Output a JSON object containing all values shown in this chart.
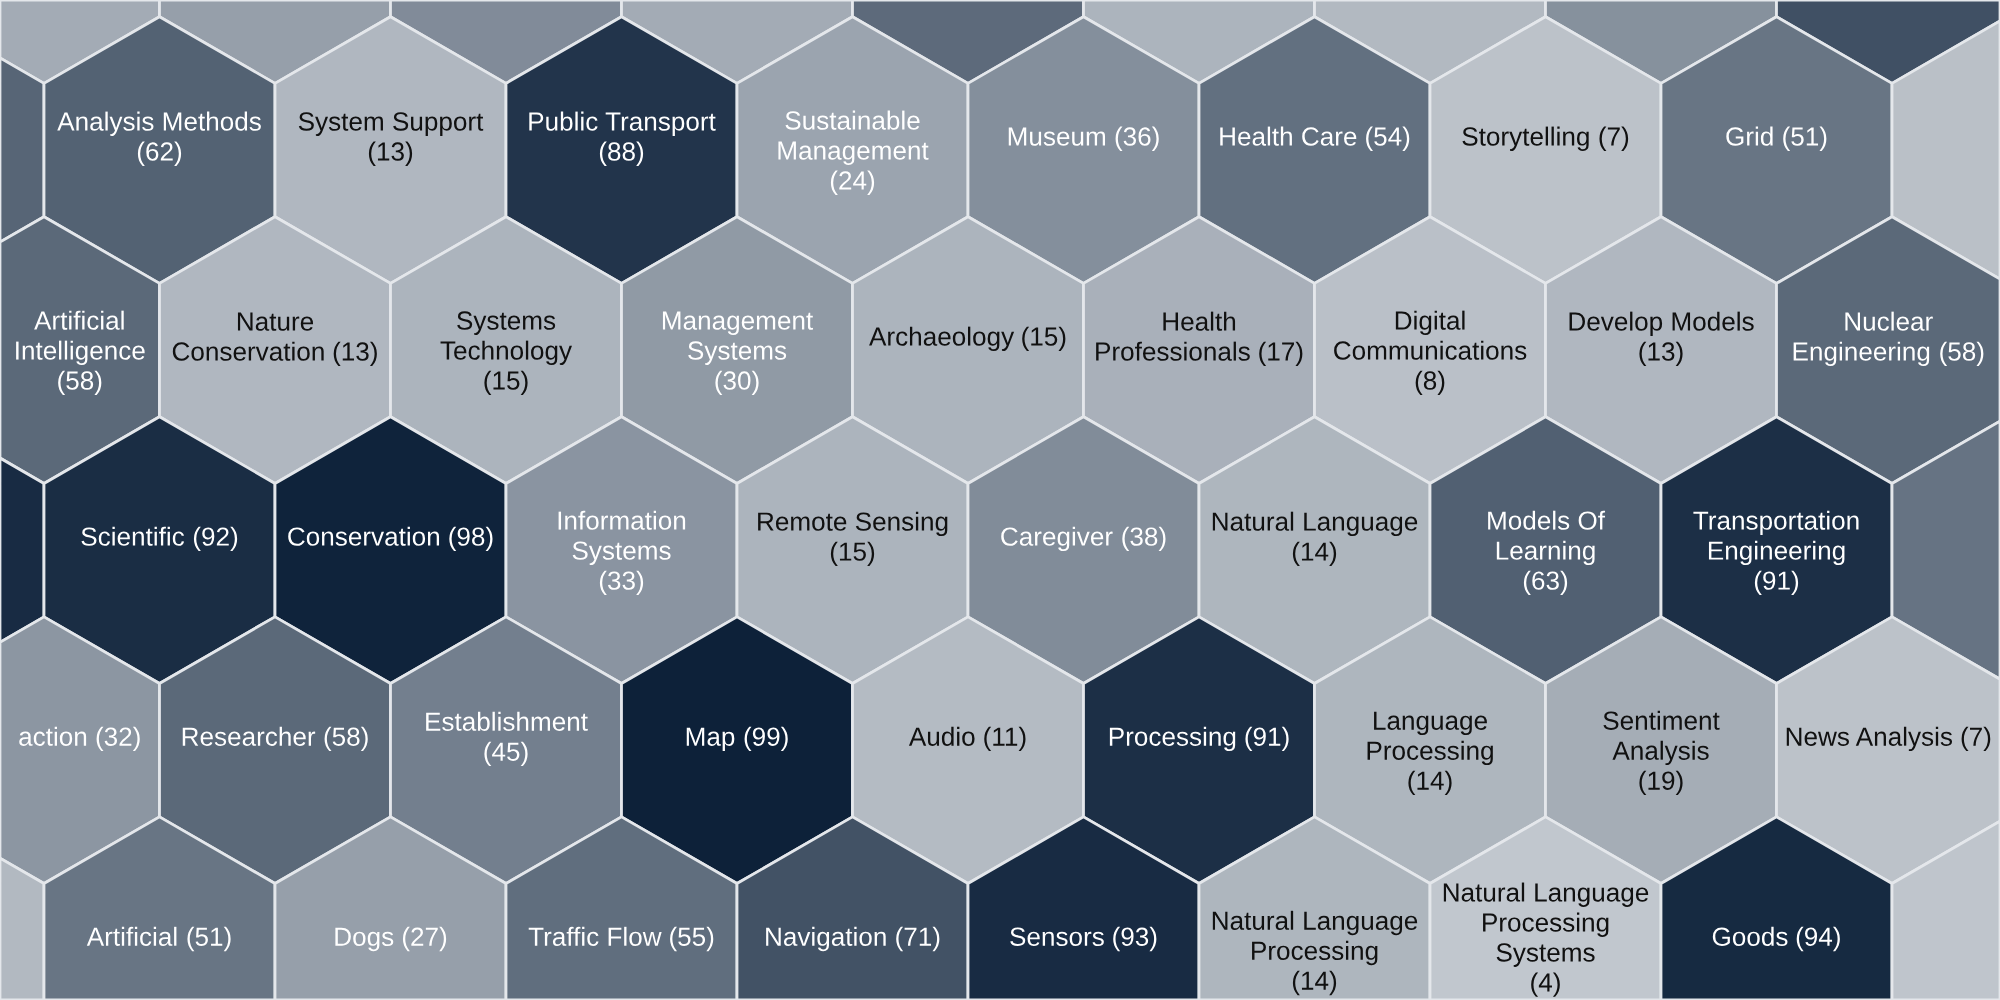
{
  "chart_data": {
    "type": "other",
    "categories": [
      null,
      null,
      null,
      null,
      null,
      null,
      null,
      null,
      null,
      null,
      "Analysis Methods",
      "System Support",
      "Public Transport",
      "Sustainable Management",
      "Museum",
      "Health Care",
      "Storytelling",
      "Grid",
      null,
      "Artificial Intelligence",
      "Nature Conservation",
      "Systems Technology",
      "Management Systems",
      "Archaeology",
      "Health Professionals",
      "Digital Communications",
      "Develop Models",
      "Nuclear Engineering",
      null,
      "Scientific",
      "Conservation",
      "Information Systems",
      "Remote Sensing",
      "Caregiver",
      "Natural Language",
      "Models Of Learning",
      "Transportation Engineering",
      null,
      "action",
      "Researcher",
      "Establishment",
      "Map",
      "Audio",
      "Processing",
      "Language Processing",
      "Sentiment Analysis",
      "News Analysis",
      null,
      "Artificial",
      "Dogs",
      "Traffic Flow",
      "Navigation",
      "Sensors",
      "Natural Language Processing",
      "Natural Language Processing Systems",
      "Goods",
      null
    ],
    "values": [
      null,
      null,
      null,
      null,
      null,
      null,
      null,
      null,
      null,
      null,
      62,
      13,
      88,
      24,
      36,
      54,
      7,
      51,
      null,
      58,
      13,
      15,
      30,
      15,
      17,
      8,
      13,
      58,
      null,
      92,
      98,
      33,
      15,
      38,
      14,
      63,
      91,
      null,
      32,
      58,
      45,
      99,
      11,
      91,
      14,
      19,
      7,
      null,
      51,
      27,
      55,
      71,
      93,
      14,
      4,
      94,
      null
    ],
    "value_labels": [
      null,
      null,
      null,
      null,
      null,
      null,
      null,
      null,
      null,
      null,
      "(62)",
      "(13)",
      "(88)",
      "(24)",
      "(36)",
      "(54)",
      "(7)",
      "(51)",
      null,
      "(58)",
      "(13)",
      "(15)",
      "(30)",
      "(15)",
      "(17)",
      "(8)",
      "(13)",
      "(58)",
      null,
      "(92)",
      "(98)",
      "(33)",
      "(15)",
      "(38)",
      "(14)",
      "(63)",
      "(91)",
      null,
      "(32)",
      "(58)",
      "(45)",
      "(99)",
      "(11)",
      "(91)",
      "(14)",
      "(19)",
      "(7)",
      null,
      "(51)",
      "(27)",
      "(55)",
      "(71)",
      "(93)",
      "(14)",
      "(4)",
      "(94)",
      null
    ],
    "colors": [
      "#a3abb5",
      "#969faa",
      "#818b99",
      "#a3abb5",
      "#5d6a7b",
      "#acb4bd",
      "#b2b9c1",
      "#86919d",
      "#405064",
      "#576576",
      "#536273",
      "#b0b7c0",
      "#22344b",
      "#9ba4af",
      "#858f9c",
      "#627080",
      "#bcc2c9",
      "#687584",
      "#bac0c7",
      "#5b6879",
      "#b0b7c0",
      "#acb4bd",
      "#909aa5",
      "#acb4bd",
      "#a9b0ba",
      "#bac0c8",
      "#b0b7c0",
      "#5b6879",
      "#182b43",
      "#1a2d44",
      "#0f223b",
      "#8a94a0",
      "#acb4bd",
      "#818c99",
      "#aeb6be",
      "#516072",
      "#1c2f46",
      "#667383",
      "#8c96a2",
      "#5b6879",
      "#747f8e",
      "#0d213a",
      "#b4bbc3",
      "#1c2f46",
      "#aeb6be",
      "#a5adb6",
      "#bcc2c9",
      "#b2b9c1",
      "#687584",
      "#969faa",
      "#606e7e",
      "#425265",
      "#182b43",
      "#aeb6be",
      "#c1c7ce",
      "#162a41",
      "#bfc5cc"
    ]
  }
}
